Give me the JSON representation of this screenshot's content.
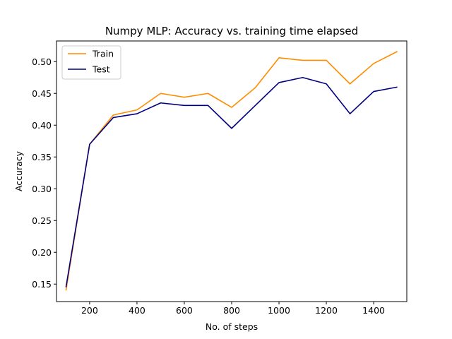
{
  "chart_data": {
    "type": "line",
    "title": "Numpy MLP: Accuracy vs. training time elapsed",
    "xlabel": "No. of steps",
    "ylabel": "Accuracy",
    "xlim": [
      60,
      1540
    ],
    "ylim": [
      0.1225,
      0.5325
    ],
    "xticks": [
      200,
      400,
      600,
      800,
      1000,
      1200,
      1400
    ],
    "yticks": [
      0.15,
      0.2,
      0.25,
      0.3,
      0.35,
      0.4,
      0.45,
      0.5
    ],
    "grid": false,
    "legend_position": "top-left",
    "x": [
      100,
      200,
      300,
      400,
      500,
      600,
      700,
      800,
      900,
      1000,
      1100,
      1200,
      1300,
      1400,
      1500
    ],
    "series": [
      {
        "name": "Train",
        "color": "#ff8c00",
        "values": [
          0.14,
          0.37,
          0.416,
          0.424,
          0.45,
          0.444,
          0.45,
          0.428,
          0.459,
          0.506,
          0.502,
          0.502,
          0.465,
          0.497,
          0.516
        ]
      },
      {
        "name": "Test",
        "color": "#000080",
        "values": [
          0.145,
          0.37,
          0.412,
          0.418,
          0.435,
          0.431,
          0.431,
          0.395,
          0.431,
          0.467,
          0.475,
          0.465,
          0.418,
          0.453,
          0.46
        ]
      }
    ]
  }
}
